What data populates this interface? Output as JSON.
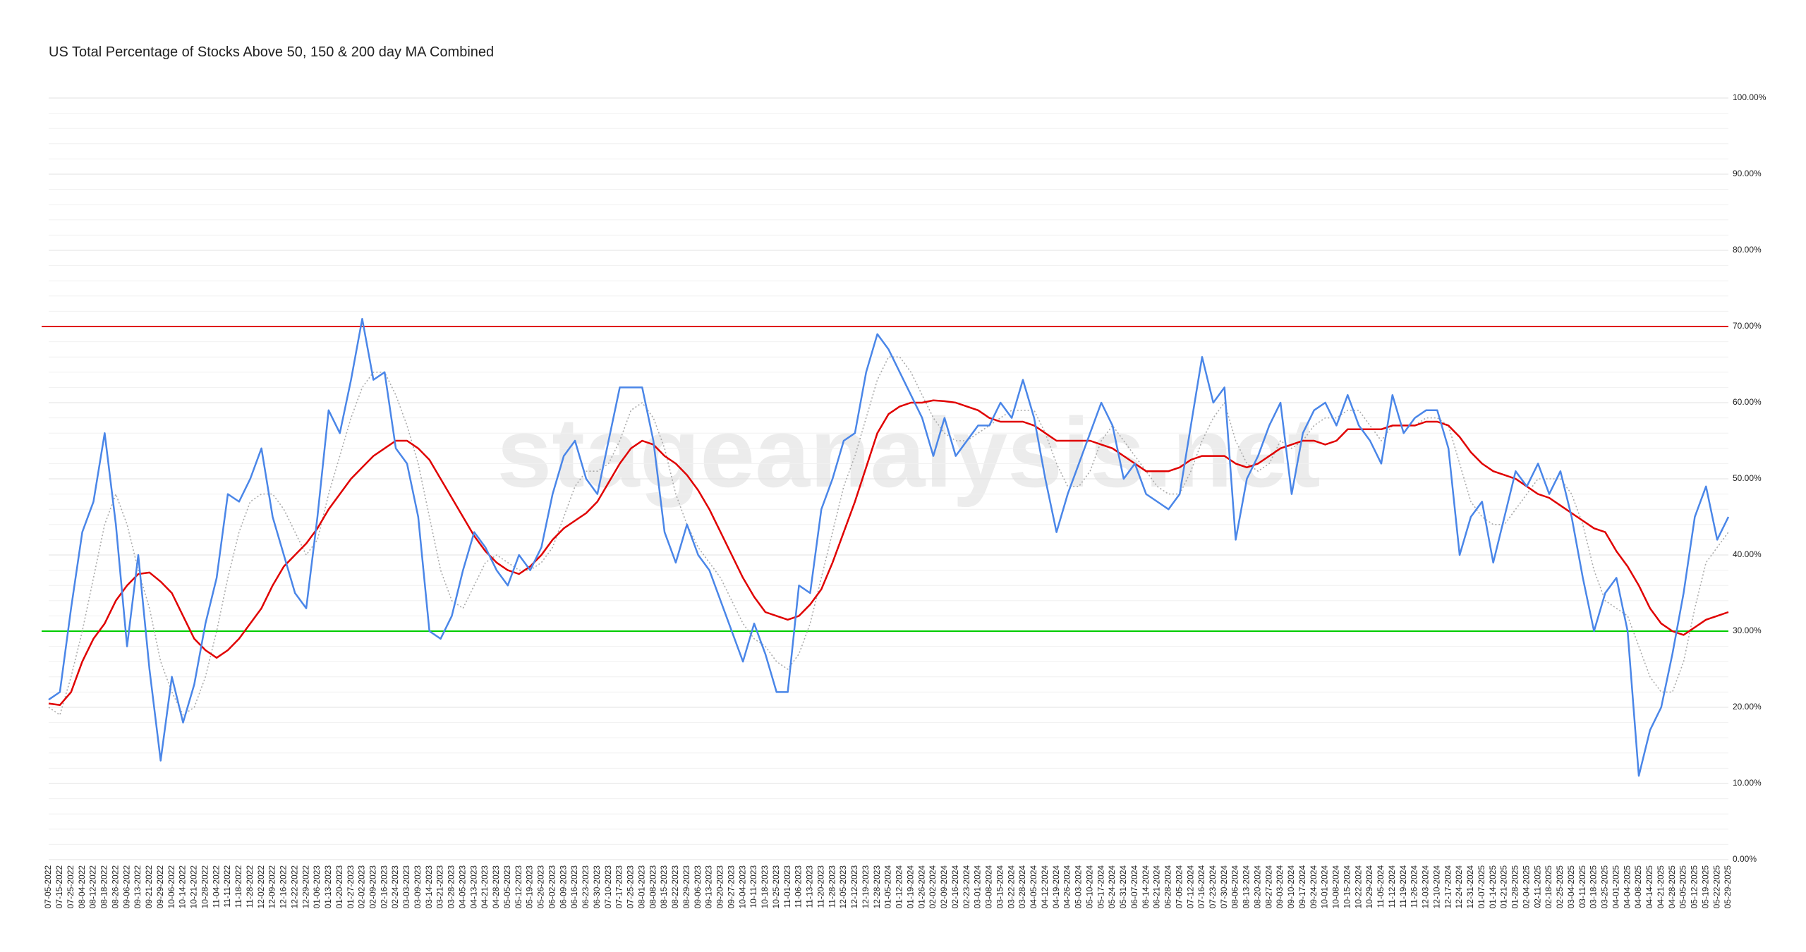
{
  "chart_data": {
    "type": "line",
    "title": "US Total Percentage of Stocks Above 50, 150 & 200 day MA Combined",
    "watermark": "stageanalysis.net",
    "categories": [
      "07-05-2022",
      "07-15-2022",
      "07-25-2022",
      "08-04-2022",
      "08-12-2022",
      "08-18-2022",
      "08-26-2022",
      "09-06-2022",
      "09-13-2022",
      "09-21-2022",
      "09-29-2022",
      "10-06-2022",
      "10-14-2022",
      "10-21-2022",
      "10-28-2022",
      "11-04-2022",
      "11-11-2022",
      "11-18-2022",
      "11-28-2022",
      "12-02-2022",
      "12-09-2022",
      "12-16-2022",
      "12-22-2022",
      "12-29-2022",
      "01-06-2023",
      "01-13-2023",
      "01-20-2023",
      "01-27-2023",
      "02-02-2023",
      "02-09-2023",
      "02-16-2023",
      "02-24-2023",
      "03-03-2023",
      "03-09-2023",
      "03-14-2023",
      "03-21-2023",
      "03-28-2023",
      "04-05-2023",
      "04-13-2023",
      "04-21-2023",
      "04-28-2023",
      "05-05-2023",
      "05-12-2023",
      "05-19-2023",
      "05-26-2023",
      "06-02-2023",
      "06-09-2023",
      "06-16-2023",
      "06-23-2023",
      "06-30-2023",
      "07-10-2023",
      "07-17-2023",
      "07-25-2023",
      "08-01-2023",
      "08-08-2023",
      "08-15-2023",
      "08-22-2023",
      "08-29-2023",
      "09-06-2023",
      "09-13-2023",
      "09-20-2023",
      "09-27-2023",
      "10-04-2023",
      "10-11-2023",
      "10-18-2023",
      "10-25-2023",
      "11-01-2023",
      "11-06-2023",
      "11-13-2023",
      "11-20-2023",
      "11-28-2023",
      "12-05-2023",
      "12-12-2023",
      "12-19-2023",
      "12-28-2023",
      "01-05-2024",
      "01-12-2024",
      "01-19-2024",
      "01-26-2024",
      "02-02-2024",
      "02-09-2024",
      "02-16-2024",
      "02-23-2024",
      "03-01-2024",
      "03-08-2024",
      "03-15-2024",
      "03-22-2024",
      "03-28-2024",
      "04-05-2024",
      "04-12-2024",
      "04-19-2024",
      "04-26-2024",
      "05-03-2024",
      "05-10-2024",
      "05-17-2024",
      "05-24-2024",
      "05-31-2024",
      "06-07-2024",
      "06-14-2024",
      "06-21-2024",
      "06-28-2024",
      "07-05-2024",
      "07-12-2024",
      "07-16-2024",
      "07-23-2024",
      "07-30-2024",
      "08-06-2024",
      "08-13-2024",
      "08-20-2024",
      "08-27-2024",
      "09-03-2024",
      "09-10-2024",
      "09-17-2024",
      "09-24-2024",
      "10-01-2024",
      "10-08-2024",
      "10-15-2024",
      "10-22-2024",
      "10-29-2024",
      "11-05-2024",
      "11-12-2024",
      "11-19-2024",
      "11-26-2024",
      "12-03-2024",
      "12-10-2024",
      "12-17-2024",
      "12-24-2024",
      "12-31-2024",
      "01-07-2025",
      "01-14-2025",
      "01-21-2025",
      "01-28-2025",
      "02-04-2025",
      "02-11-2025",
      "02-18-2025",
      "02-25-2025",
      "03-04-2025",
      "03-11-2025",
      "03-18-2025",
      "03-25-2025",
      "04-01-2025",
      "04-04-2025",
      "04-08-2025",
      "04-14-2025",
      "04-21-2025",
      "04-28-2025",
      "05-05-2025",
      "05-12-2025",
      "05-19-2025",
      "05-22-2025",
      "05-29-2025"
    ],
    "series": [
      {
        "color": "#4a86e8",
        "style": "solid",
        "width": 2.5,
        "values": [
          21,
          22,
          33,
          43,
          47,
          56,
          44,
          28,
          40,
          25,
          13,
          24,
          18,
          23,
          31,
          37,
          48,
          47,
          50,
          54,
          45,
          40,
          35,
          33,
          45,
          59,
          56,
          63,
          71,
          63,
          64,
          54,
          52,
          45,
          30,
          29,
          32,
          38,
          43,
          41,
          38,
          36,
          40,
          38,
          41,
          48,
          53,
          55,
          50,
          48,
          55,
          62,
          62,
          62,
          55,
          43,
          39,
          44,
          40,
          38,
          34,
          30,
          26,
          31,
          27,
          22,
          22,
          36,
          35,
          46,
          50,
          55,
          56,
          64,
          69,
          67,
          64,
          61,
          58,
          53,
          58,
          53,
          55,
          57,
          57,
          60,
          58,
          63,
          58,
          50,
          43,
          48,
          52,
          56,
          60,
          57,
          50,
          52,
          48,
          47,
          46,
          48,
          57,
          66,
          60,
          62,
          42,
          50,
          53,
          57,
          60,
          48,
          56,
          59,
          60,
          57,
          61,
          57,
          55,
          52,
          61,
          56,
          58,
          59,
          59,
          54,
          40,
          45,
          47,
          39,
          45,
          51,
          49,
          52,
          48,
          51,
          45,
          37,
          30,
          35,
          37,
          30,
          11,
          17,
          20,
          27,
          35,
          45,
          49,
          42,
          45
        ]
      },
      {
        "color": "#aaaaaa",
        "style": "dotted",
        "width": 1.6,
        "values": [
          20,
          19,
          24,
          30,
          37,
          44,
          48,
          44,
          38,
          33,
          26,
          22,
          19,
          20,
          24,
          30,
          37,
          43,
          47,
          48,
          48,
          46,
          43,
          40,
          42,
          48,
          53,
          58,
          62,
          64,
          64,
          61,
          57,
          52,
          45,
          38,
          34,
          33,
          36,
          39,
          40,
          39,
          38,
          38,
          39,
          41,
          45,
          49,
          51,
          51,
          52,
          55,
          59,
          60,
          58,
          54,
          48,
          44,
          41,
          39,
          37,
          34,
          31,
          29,
          28,
          26,
          25,
          27,
          31,
          37,
          43,
          49,
          53,
          58,
          63,
          66,
          66,
          64,
          61,
          58,
          56,
          55,
          55,
          56,
          57,
          58,
          59,
          59,
          59,
          56,
          52,
          49,
          49,
          51,
          55,
          57,
          55,
          53,
          51,
          49,
          48,
          48,
          51,
          55,
          58,
          60,
          55,
          52,
          51,
          52,
          55,
          54,
          55,
          57,
          58,
          58,
          59,
          59,
          57,
          55,
          57,
          57,
          57,
          58,
          58,
          57,
          52,
          47,
          45,
          44,
          44,
          46,
          48,
          50,
          50,
          50,
          48,
          44,
          38,
          34,
          33,
          32,
          28,
          24,
          22,
          22,
          26,
          33,
          39,
          41,
          43
        ]
      },
      {
        "color": "#e00000",
        "style": "solid",
        "width": 2.5,
        "values": [
          20.5,
          20.3,
          22,
          26,
          29,
          31,
          34,
          36,
          37.5,
          37.7,
          36.5,
          35,
          32,
          29,
          27.5,
          26.5,
          27.5,
          29,
          31,
          33,
          36,
          38.5,
          40,
          41.5,
          43.5,
          46,
          48,
          50,
          51.5,
          53,
          54,
          55,
          55,
          54,
          52.5,
          50,
          47.5,
          45,
          42.5,
          40.5,
          39,
          38,
          37.5,
          38.5,
          40,
          42,
          43.5,
          44.5,
          45.5,
          47,
          49.5,
          52,
          54,
          55,
          54.5,
          53,
          52,
          50.5,
          48.5,
          46,
          43,
          40,
          37,
          34.5,
          32.5,
          32,
          31.5,
          32,
          33.5,
          35.5,
          39,
          43,
          47,
          51.5,
          56,
          58.5,
          59.5,
          60,
          60,
          60.3,
          60.2,
          60,
          59.5,
          59,
          58,
          57.5,
          57.5,
          57.5,
          57,
          56,
          55,
          55,
          55,
          55,
          54.5,
          54,
          53,
          52,
          51,
          51,
          51,
          51.5,
          52.5,
          53,
          53,
          53,
          52,
          51.5,
          52,
          53,
          54,
          54.5,
          55,
          55,
          54.5,
          55,
          56.5,
          56.5,
          56.5,
          56.5,
          57,
          57,
          57,
          57.5,
          57.5,
          57,
          55.5,
          53.5,
          52,
          51,
          50.5,
          50,
          49,
          48,
          47.5,
          46.5,
          45.5,
          44.5,
          43.5,
          43,
          40.5,
          38.5,
          36,
          33,
          31,
          30,
          29.5,
          30.5,
          31.5,
          32,
          32.5
        ]
      }
    ],
    "reference_lines": [
      {
        "value": 70,
        "color": "#e00000"
      },
      {
        "value": 30,
        "color": "#00cc00"
      }
    ],
    "ylim": [
      0,
      100
    ],
    "yticks": [
      {
        "value": 0,
        "label": "0.00%"
      },
      {
        "value": 10,
        "label": "10.00%"
      },
      {
        "value": 20,
        "label": "20.00%"
      },
      {
        "value": 30,
        "label": "30.00%"
      },
      {
        "value": 40,
        "label": "40.00%"
      },
      {
        "value": 50,
        "label": "50.00%"
      },
      {
        "value": 60,
        "label": "60.00%"
      },
      {
        "value": 70,
        "label": "70.00%"
      },
      {
        "value": 80,
        "label": "80.00%"
      },
      {
        "value": 90,
        "label": "90.00%"
      },
      {
        "value": 100,
        "label": "100.00%"
      }
    ],
    "minor_yticks": [
      2,
      4,
      6,
      8,
      12,
      14,
      16,
      18,
      22,
      24,
      26,
      28,
      32,
      34,
      36,
      38,
      42,
      44,
      46,
      48,
      52,
      54,
      56,
      58,
      62,
      64,
      66,
      68,
      72,
      74,
      76,
      78,
      82,
      84,
      86,
      88,
      92,
      94,
      96,
      98
    ],
    "grid": true
  }
}
